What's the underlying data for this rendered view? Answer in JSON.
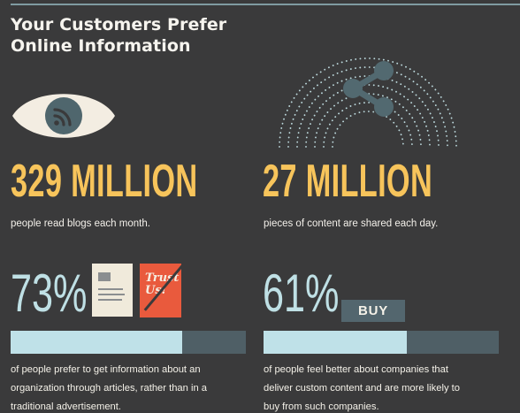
{
  "header": {
    "title_line_1": "Your Customers Prefer",
    "title_line_2": "Online Information"
  },
  "stats": {
    "blogs": {
      "number": "329 MILLION",
      "caption": "people read blogs each month."
    },
    "content": {
      "number": "27 MILLION",
      "caption": "pieces of content are shared each day."
    }
  },
  "percentages": {
    "articles": {
      "value": "73%",
      "fill_fraction": 0.73,
      "card_text": "Trust Us!",
      "description": "of people prefer to get information about an organization through articles, rather than in a traditional advertisement."
    },
    "custom_content": {
      "value": "61%",
      "fill_fraction": 0.61,
      "buy_label": "BUY",
      "description": "of people feel better about companies that deliver custom content and are more likely to buy from such companies."
    }
  },
  "icons": {
    "eye": "eye-icon",
    "rss": "rss-icon",
    "share": "share-icon",
    "document": "document-icon",
    "trust": "trust-card-icon"
  },
  "colors": {
    "background": "#3a3a3b",
    "accent_yellow": "#f7c45b",
    "accent_teal": "#bfe1e8",
    "muted_teal": "#4f5f66",
    "orange": "#e95a3d",
    "cream": "#f0eadb"
  }
}
